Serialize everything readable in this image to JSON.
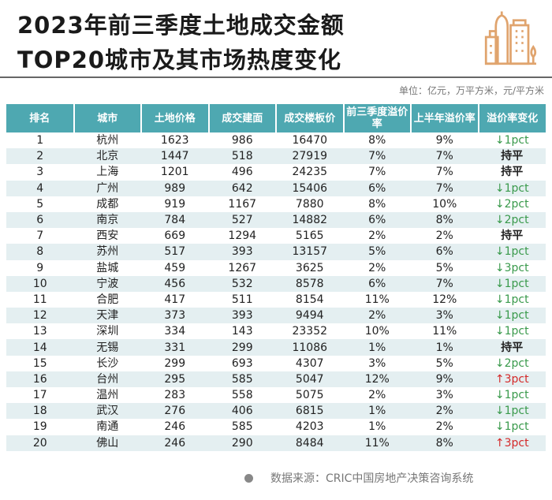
{
  "title": {
    "line1": "2023年前三季度土地成交金额",
    "line2": "TOP20城市及其市场热度变化"
  },
  "logo_icon": "city-buildings-icon",
  "unit": "单位：亿元，万平方米，元/平方米",
  "colors": {
    "header": "#4ea8b1",
    "stripe": "#e4eff1",
    "down": "#3a9a4c",
    "up": "#d42a2a",
    "logo": "#e0a46e"
  },
  "table": {
    "headers": [
      "排名",
      "城市",
      "土地价格",
      "成交建面",
      "成交楼板价",
      "前三季度溢价率",
      "上半年溢价率",
      "溢价率变化"
    ],
    "rows": [
      [
        "1",
        "杭州",
        "1623",
        "986",
        "16470",
        "8%",
        "9%",
        "↓1pct"
      ],
      [
        "2",
        "北京",
        "1447",
        "518",
        "27919",
        "7%",
        "7%",
        "持平"
      ],
      [
        "3",
        "上海",
        "1201",
        "496",
        "24235",
        "7%",
        "7%",
        "持平"
      ],
      [
        "4",
        "广州",
        "989",
        "642",
        "15406",
        "6%",
        "7%",
        "↓1pct"
      ],
      [
        "5",
        "成都",
        "919",
        "1167",
        "7880",
        "8%",
        "10%",
        "↓2pct"
      ],
      [
        "6",
        "南京",
        "784",
        "527",
        "14882",
        "6%",
        "8%",
        "↓2pct"
      ],
      [
        "7",
        "西安",
        "669",
        "1294",
        "5165",
        "2%",
        "2%",
        "持平"
      ],
      [
        "8",
        "苏州",
        "517",
        "393",
        "13157",
        "5%",
        "6%",
        "↓1pct"
      ],
      [
        "9",
        "盐城",
        "459",
        "1267",
        "3625",
        "2%",
        "5%",
        "↓3pct"
      ],
      [
        "10",
        "宁波",
        "456",
        "532",
        "8578",
        "6%",
        "7%",
        "↓1pct"
      ],
      [
        "11",
        "合肥",
        "417",
        "511",
        "8154",
        "11%",
        "12%",
        "↓1pct"
      ],
      [
        "12",
        "天津",
        "373",
        "393",
        "9494",
        "2%",
        "3%",
        "↓1pct"
      ],
      [
        "13",
        "深圳",
        "334",
        "143",
        "23352",
        "10%",
        "11%",
        "↓1pct"
      ],
      [
        "14",
        "无锡",
        "331",
        "299",
        "11086",
        "1%",
        "1%",
        "持平"
      ],
      [
        "15",
        "长沙",
        "299",
        "693",
        "4307",
        "3%",
        "5%",
        "↓2pct"
      ],
      [
        "16",
        "台州",
        "295",
        "585",
        "5047",
        "12%",
        "9%",
        "↑3pct"
      ],
      [
        "17",
        "温州",
        "283",
        "558",
        "5075",
        "2%",
        "3%",
        "↓1pct"
      ],
      [
        "18",
        "武汉",
        "276",
        "406",
        "6815",
        "1%",
        "2%",
        "↓1pct"
      ],
      [
        "19",
        "南通",
        "246",
        "585",
        "4203",
        "1%",
        "2%",
        "↓1pct"
      ],
      [
        "20",
        "佛山",
        "246",
        "290",
        "8484",
        "11%",
        "8%",
        "↑3pct"
      ]
    ]
  },
  "footer": {
    "source": "数据来源：CRIC中国房地产决策咨询系统"
  }
}
